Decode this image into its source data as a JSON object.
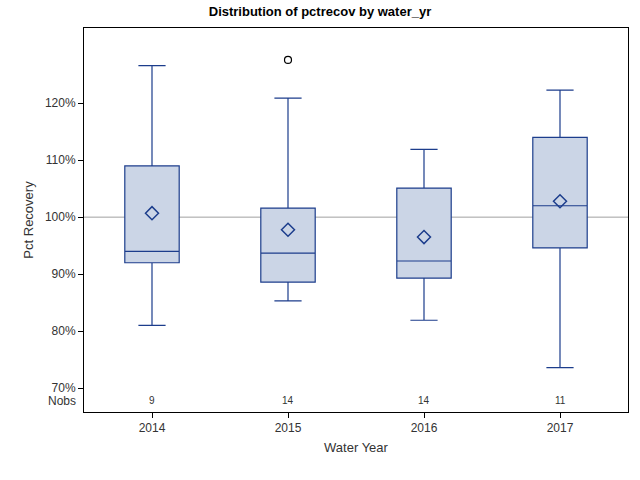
{
  "chart_data": {
    "type": "box",
    "title": "Distribution of pctrecov by water_yr",
    "x_label": "Water Year",
    "y_label": "Pct Recovery",
    "categories": [
      "2014",
      "2015",
      "2016",
      "2017"
    ],
    "lower_whisker": [
      81.0,
      85.3,
      81.9,
      73.6
    ],
    "q1": [
      92.0,
      88.6,
      89.3,
      94.6
    ],
    "median": [
      94.0,
      93.7,
      92.3,
      102.0
    ],
    "q3": [
      109.0,
      101.6,
      105.1,
      114.0
    ],
    "upper_whisker": [
      126.6,
      120.9,
      111.9,
      122.3
    ],
    "mean": [
      100.7,
      97.8,
      96.5,
      102.8
    ],
    "outliers": [
      [],
      [
        127.6
      ],
      [],
      []
    ],
    "nobs_label": "Nobs",
    "nobs": [
      9,
      14,
      14,
      11
    ],
    "reference_line": 100,
    "color": "#1c3d8c",
    "ylim": [
      65.8,
      133.2
    ],
    "yticks": [
      {
        "value": 70,
        "label": "70%"
      },
      {
        "value": 80,
        "label": "80%"
      },
      {
        "value": 90,
        "label": "90%"
      },
      {
        "value": 100,
        "label": "100%"
      },
      {
        "value": 110,
        "label": "110%"
      },
      {
        "value": 120,
        "label": "120%"
      }
    ],
    "grid": false
  }
}
